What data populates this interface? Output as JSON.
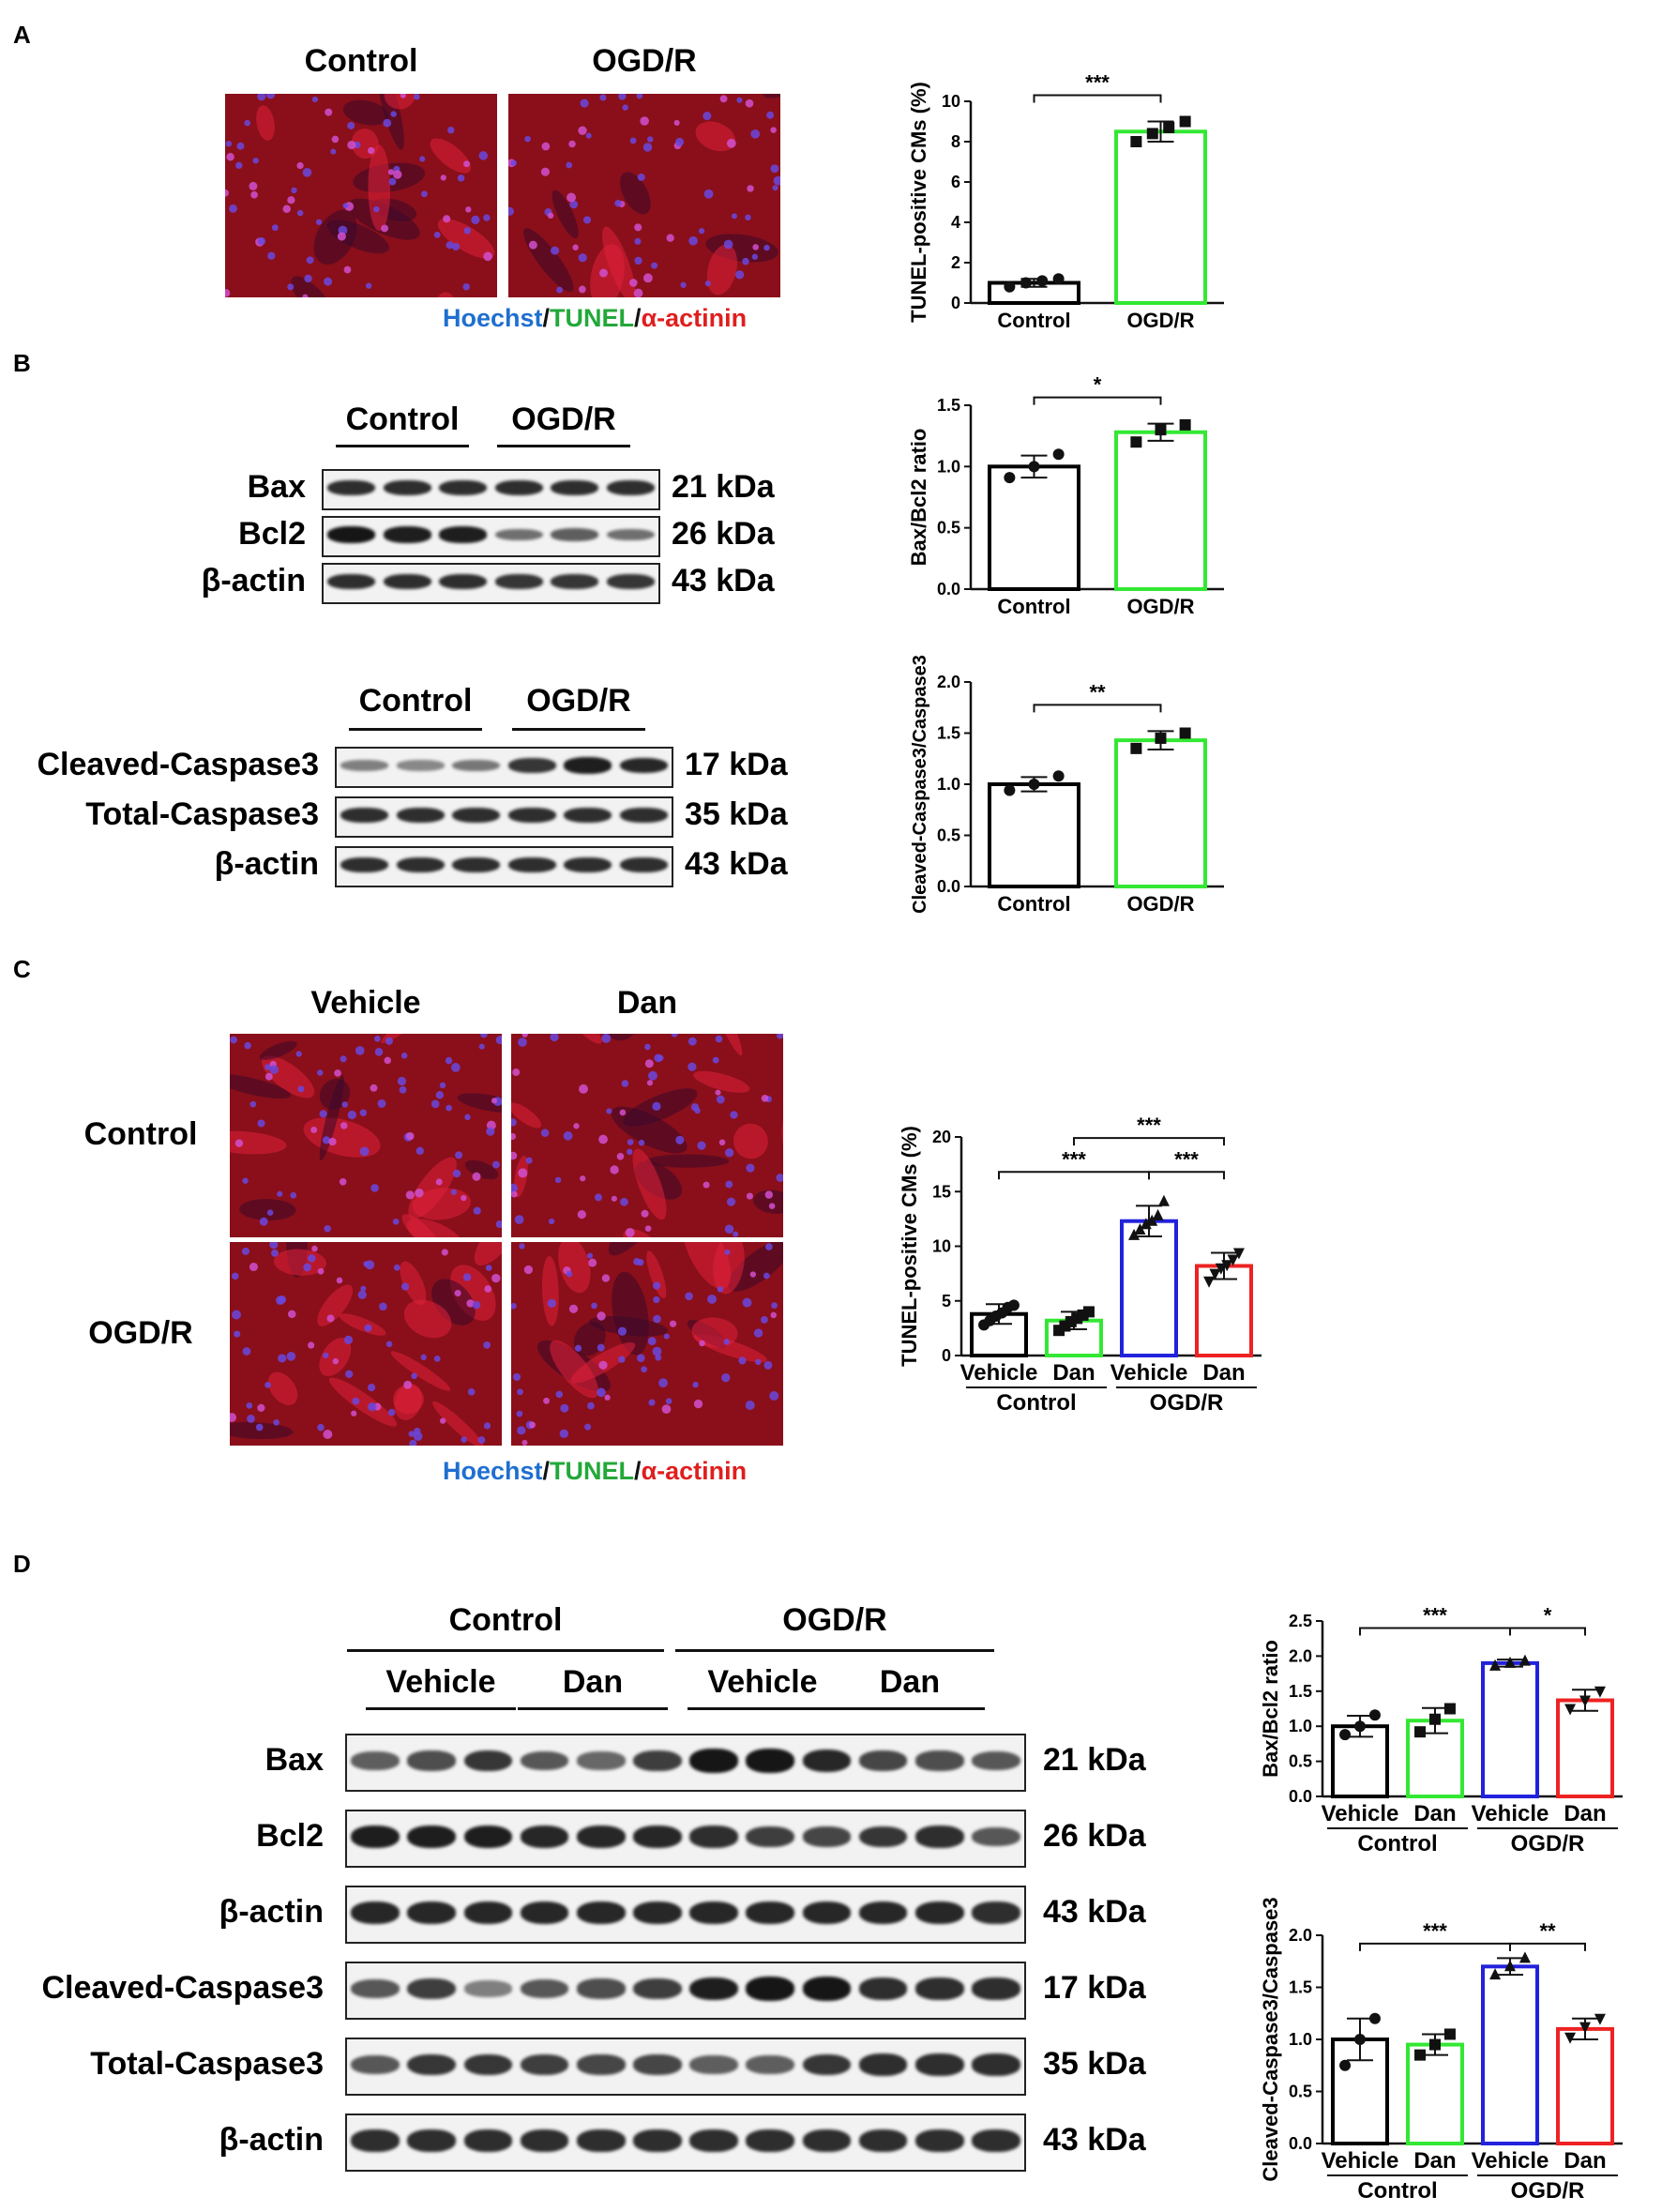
{
  "panels": {
    "A": {
      "letter": "A",
      "images": [
        {
          "title": "Control"
        },
        {
          "title": "OGD/R"
        }
      ],
      "legend": [
        {
          "text": "Hoechst",
          "color": "#1f6fd0"
        },
        {
          "text": "/",
          "color": "#111111"
        },
        {
          "text": "TUNEL",
          "color": "#23a83a"
        },
        {
          "text": "/",
          "color": "#111111"
        },
        {
          "text": "α-actinin",
          "color": "#e01e1e"
        }
      ]
    },
    "B": {
      "letter": "B",
      "blot1": {
        "groups": [
          "Control",
          "OGD/R"
        ],
        "rows": [
          {
            "label": "Bax",
            "kda": "21 kDa",
            "intensity": [
              0.85,
              0.85,
              0.85,
              0.85,
              0.85,
              0.85
            ]
          },
          {
            "label": "Bcl2",
            "kda": "26 kDa",
            "intensity": [
              1.0,
              0.95,
              0.95,
              0.45,
              0.55,
              0.45
            ]
          },
          {
            "label": "β-actin",
            "kda": "43 kDa",
            "intensity": [
              0.85,
              0.85,
              0.85,
              0.8,
              0.8,
              0.8
            ]
          }
        ]
      },
      "blot2": {
        "groups": [
          "Control",
          "OGD/R"
        ],
        "rows": [
          {
            "label": "Cleaved-Caspase3",
            "kda": "17 kDa",
            "intensity": [
              0.35,
              0.3,
              0.4,
              0.8,
              0.95,
              0.9
            ]
          },
          {
            "label": "Total-Caspase3",
            "kda": "35 kDa",
            "intensity": [
              0.85,
              0.85,
              0.85,
              0.85,
              0.85,
              0.85
            ]
          },
          {
            "label": "β-actin",
            "kda": "43 kDa",
            "intensity": [
              0.85,
              0.85,
              0.85,
              0.85,
              0.85,
              0.85
            ]
          }
        ]
      }
    },
    "C": {
      "letter": "C",
      "col_titles": [
        "Vehicle",
        "Dan"
      ],
      "row_titles": [
        "Control",
        "OGD/R"
      ],
      "legend": [
        {
          "text": "Hoechst",
          "color": "#1f6fd0"
        },
        {
          "text": "/",
          "color": "#111111"
        },
        {
          "text": "TUNEL",
          "color": "#23a83a"
        },
        {
          "text": "/",
          "color": "#111111"
        },
        {
          "text": "α-actinin",
          "color": "#e01e1e"
        }
      ]
    },
    "D": {
      "letter": "D",
      "groups": [
        "Control",
        "OGD/R"
      ],
      "subgroups": [
        "Vehicle",
        "Dan",
        "Vehicle",
        "Dan"
      ],
      "rows": [
        {
          "label": "Bax",
          "kda": "21 kDa",
          "intensity": [
            0.55,
            0.65,
            0.8,
            0.6,
            0.5,
            0.75,
            1.0,
            1.0,
            0.9,
            0.7,
            0.65,
            0.6
          ]
        },
        {
          "label": "Bcl2",
          "kda": "26 kDa",
          "intensity": [
            0.95,
            0.95,
            0.95,
            0.9,
            0.9,
            0.9,
            0.85,
            0.75,
            0.7,
            0.8,
            0.85,
            0.6
          ]
        },
        {
          "label": "β-actin",
          "kda": "43 kDa",
          "intensity": [
            0.9,
            0.9,
            0.9,
            0.9,
            0.9,
            0.9,
            0.9,
            0.9,
            0.9,
            0.9,
            0.9,
            0.85
          ]
        },
        {
          "label": "Cleaved-Caspase3",
          "kda": "17 kDa",
          "intensity": [
            0.6,
            0.75,
            0.35,
            0.6,
            0.65,
            0.75,
            0.95,
            1.0,
            1.0,
            0.85,
            0.85,
            0.85
          ]
        },
        {
          "label": "Total-Caspase3",
          "kda": "35 kDa",
          "intensity": [
            0.6,
            0.8,
            0.8,
            0.75,
            0.7,
            0.7,
            0.55,
            0.55,
            0.8,
            0.85,
            0.85,
            0.85
          ]
        },
        {
          "label": "β-actin",
          "kda": "43 kDa",
          "intensity": [
            0.85,
            0.85,
            0.85,
            0.85,
            0.85,
            0.85,
            0.85,
            0.85,
            0.85,
            0.85,
            0.85,
            0.85
          ]
        }
      ]
    }
  },
  "chart_data": [
    {
      "id": "A_tunel",
      "type": "bar",
      "categories": [
        "Control",
        "OGD/R"
      ],
      "values": [
        1.0,
        8.5
      ],
      "errors": [
        0.2,
        0.5
      ],
      "colors": [
        "#000000",
        "#33e833"
      ],
      "points": [
        [
          0.8,
          1.0,
          1.1,
          1.2
        ],
        [
          8.0,
          8.4,
          8.7,
          9.0
        ]
      ],
      "markers": [
        "circle",
        "square"
      ],
      "ylabel": "TUNEL-positive CMs (%)",
      "ylim": [
        0,
        10
      ],
      "yticks": [
        0,
        2,
        4,
        6,
        8,
        10
      ],
      "significance": [
        {
          "from": 0,
          "to": 1,
          "label": "***"
        }
      ]
    },
    {
      "id": "B_baxbcl2",
      "type": "bar",
      "categories": [
        "Control",
        "OGD/R"
      ],
      "values": [
        1.0,
        1.28
      ],
      "errors": [
        0.09,
        0.07
      ],
      "colors": [
        "#000000",
        "#33e833"
      ],
      "points": [
        [
          0.91,
          1.0,
          1.1
        ],
        [
          1.2,
          1.3,
          1.34
        ]
      ],
      "markers": [
        "circle",
        "square"
      ],
      "ylabel": "Bax/Bcl2 ratio",
      "ylim": [
        0,
        1.5
      ],
      "yticks": [
        0.0,
        0.5,
        1.0,
        1.5
      ],
      "significance": [
        {
          "from": 0,
          "to": 1,
          "label": "*"
        }
      ]
    },
    {
      "id": "B_casp",
      "type": "bar",
      "categories": [
        "Control",
        "OGD/R"
      ],
      "values": [
        1.0,
        1.43
      ],
      "errors": [
        0.07,
        0.09
      ],
      "colors": [
        "#000000",
        "#33e833"
      ],
      "points": [
        [
          0.94,
          1.0,
          1.08
        ],
        [
          1.35,
          1.45,
          1.5
        ]
      ],
      "markers": [
        "circle",
        "square"
      ],
      "ylabel": "Cleaved-Caspase3/Caspase3",
      "ylim": [
        0,
        2.0
      ],
      "yticks": [
        0.0,
        0.5,
        1.0,
        1.5,
        2.0
      ],
      "significance": [
        {
          "from": 0,
          "to": 1,
          "label": "**"
        }
      ]
    },
    {
      "id": "C_tunel",
      "type": "bar",
      "categories": [
        "Vehicle",
        "Dan",
        "Vehicle",
        "Dan"
      ],
      "groups": [
        {
          "label": "Control",
          "from": 0,
          "to": 1
        },
        {
          "label": "OGD/R",
          "from": 2,
          "to": 3
        }
      ],
      "values": [
        3.8,
        3.2,
        12.3,
        8.2
      ],
      "errors": [
        0.9,
        0.8,
        1.4,
        1.2
      ],
      "colors": [
        "#000000",
        "#33e833",
        "#2222dd",
        "#ee2222"
      ],
      "points": [
        [
          2.8,
          3.2,
          3.6,
          3.9,
          4.4,
          4.6
        ],
        [
          2.3,
          2.7,
          3.1,
          3.4,
          3.7,
          4.0
        ],
        [
          11.0,
          11.5,
          12.0,
          12.3,
          12.8,
          14.1
        ],
        [
          6.8,
          7.5,
          8.0,
          8.3,
          8.8,
          9.4
        ]
      ],
      "markers": [
        "circle",
        "square",
        "triangle",
        "triangle-down"
      ],
      "ylabel": "TUNEL-positive CMs (%)",
      "ylim": [
        0,
        20
      ],
      "yticks": [
        0,
        5,
        10,
        15,
        20
      ],
      "significance": [
        {
          "from": 0,
          "to": 2,
          "label": "***"
        },
        {
          "from": 2,
          "to": 3,
          "label": "***"
        },
        {
          "from": 1,
          "to": 3,
          "label": "***"
        }
      ]
    },
    {
      "id": "D_baxbcl2",
      "type": "bar",
      "categories": [
        "Vehicle",
        "Dan",
        "Vehicle",
        "Dan"
      ],
      "groups": [
        {
          "label": "Control",
          "from": 0,
          "to": 1
        },
        {
          "label": "OGD/R",
          "from": 2,
          "to": 3
        }
      ],
      "values": [
        1.0,
        1.08,
        1.9,
        1.37
      ],
      "errors": [
        0.15,
        0.18,
        0.05,
        0.15
      ],
      "colors": [
        "#000000",
        "#33e833",
        "#2222dd",
        "#ee2222"
      ],
      "points": [
        [
          0.88,
          1.0,
          1.16
        ],
        [
          0.92,
          1.1,
          1.25
        ],
        [
          1.86,
          1.9,
          1.93
        ],
        [
          1.25,
          1.37,
          1.5
        ]
      ],
      "markers": [
        "circle",
        "square",
        "triangle",
        "triangle-down"
      ],
      "ylabel": "Bax/Bcl2 ratio",
      "ylim": [
        0,
        2.5
      ],
      "yticks": [
        0.0,
        0.5,
        1.0,
        1.5,
        2.0,
        2.5
      ],
      "significance": [
        {
          "from": 0,
          "to": 2,
          "label": "***"
        },
        {
          "from": 2,
          "to": 3,
          "label": "*"
        }
      ]
    },
    {
      "id": "D_casp",
      "type": "bar",
      "categories": [
        "Vehicle",
        "Dan",
        "Vehicle",
        "Dan"
      ],
      "groups": [
        {
          "label": "Control",
          "from": 0,
          "to": 1
        },
        {
          "label": "OGD/R",
          "from": 2,
          "to": 3
        }
      ],
      "values": [
        1.0,
        0.95,
        1.7,
        1.1
      ],
      "errors": [
        0.2,
        0.1,
        0.08,
        0.1
      ],
      "colors": [
        "#000000",
        "#33e833",
        "#2222dd",
        "#ee2222"
      ],
      "points": [
        [
          0.75,
          1.0,
          1.2
        ],
        [
          0.85,
          0.95,
          1.05
        ],
        [
          1.62,
          1.7,
          1.78
        ],
        [
          1.02,
          1.12,
          1.2
        ]
      ],
      "markers": [
        "circle",
        "square",
        "triangle",
        "triangle-down"
      ],
      "ylabel": "Cleaved-Caspase3/Caspase3",
      "ylim": [
        0,
        2.0
      ],
      "yticks": [
        0.0,
        0.5,
        1.0,
        1.5,
        2.0
      ],
      "significance": [
        {
          "from": 0,
          "to": 2,
          "label": "***"
        },
        {
          "from": 2,
          "to": 3,
          "label": "**"
        }
      ]
    }
  ]
}
